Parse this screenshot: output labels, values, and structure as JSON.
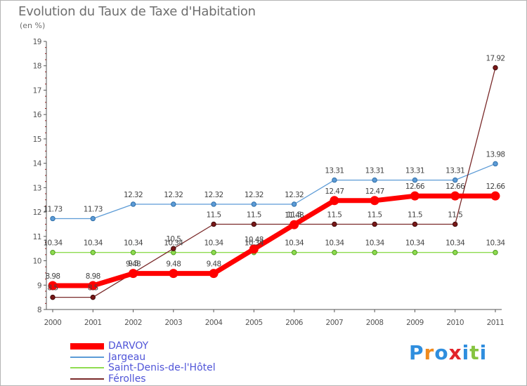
{
  "chart_data": {
    "type": "line",
    "title": "Evolution du Taux de Taxe d'Habitation",
    "ylabel": "(en %)",
    "xlabel": "",
    "ylim": [
      8,
      19
    ],
    "yticks": [
      "8",
      "9",
      "10",
      "11",
      "12",
      "13",
      "14",
      "15",
      "16",
      "17",
      "18",
      "19"
    ],
    "categories": [
      "2000",
      "2001",
      "2002",
      "2003",
      "2004",
      "2005",
      "2006",
      "2007",
      "2008",
      "2009",
      "2010",
      "2011"
    ],
    "series": [
      {
        "name": "DARVOY",
        "color": "#ff0000",
        "values": [
          8.98,
          8.98,
          9.48,
          9.48,
          9.48,
          10.48,
          11.48,
          12.47,
          12.47,
          12.66,
          12.66,
          12.66
        ],
        "labels": [
          "8.98",
          "8.98",
          "9.48",
          "9.48",
          "9.48",
          "10.48",
          "11.48",
          "12.47",
          "12.47",
          "12.66",
          "12.66",
          "12.66"
        ]
      },
      {
        "name": "Jargeau",
        "color": "#5c9bd6",
        "values": [
          11.73,
          11.73,
          12.32,
          12.32,
          12.32,
          12.32,
          12.32,
          13.31,
          13.31,
          13.31,
          13.31,
          13.98
        ],
        "labels": [
          "11.73",
          "11.73",
          "12.32",
          "12.32",
          "12.32",
          "12.32",
          "12.32",
          "13.31",
          "13.31",
          "13.31",
          "13.31",
          "13.98"
        ]
      },
      {
        "name": "Saint-Denis-de-l'Hôtel",
        "color": "#8fdc50",
        "values": [
          10.34,
          10.34,
          10.34,
          10.34,
          10.34,
          10.34,
          10.34,
          10.34,
          10.34,
          10.34,
          10.34,
          10.34
        ],
        "labels": [
          "10.34",
          "10.34",
          "10.34",
          "10.34",
          "10.34",
          "10.34",
          "10.34",
          "10.34",
          "10.34",
          "10.34",
          "10.34",
          "10.34"
        ]
      },
      {
        "name": "Férolles",
        "color": "#7a2a2a",
        "values": [
          8.5,
          8.5,
          9.5,
          10.5,
          11.5,
          11.5,
          11.5,
          11.5,
          11.5,
          11.5,
          11.5,
          17.92
        ],
        "labels": [
          "8.5",
          "8.5",
          "9.5",
          "10.5",
          "11.5",
          "11.5",
          "11.5",
          "11.5",
          "11.5",
          "11.5",
          "11.5",
          "17.92"
        ]
      }
    ],
    "legend": "bottom-left",
    "grid": false
  },
  "brand": {
    "letters": [
      "P",
      "r",
      "o",
      "x",
      "i",
      "t",
      "i"
    ],
    "colors": [
      "#2f8ede",
      "#f08a1c",
      "#2f8ede",
      "#e2232a",
      "#2f8ede",
      "#86c440",
      "#2f8ede"
    ]
  }
}
